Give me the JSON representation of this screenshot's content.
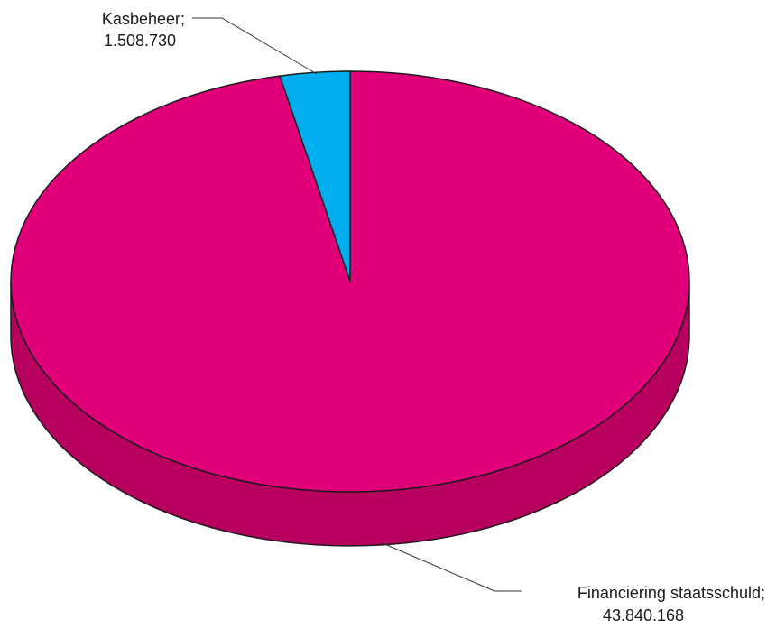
{
  "chart_data": {
    "type": "pie",
    "style": "3d",
    "slices": [
      {
        "label": "Kasbeheer;",
        "value_text": "1.508.730",
        "value": 1508730,
        "color": "#00aeef",
        "side_color": "#0090c8"
      },
      {
        "label": "Financiering staatsschuld;",
        "value_text": "43.840.168",
        "value": 43840168,
        "color": "#e2007a",
        "side_color": "#b8005f"
      }
    ]
  }
}
